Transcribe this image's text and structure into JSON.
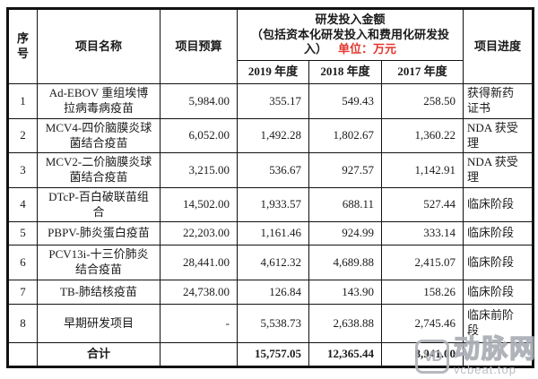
{
  "table": {
    "header": {
      "col_seq": "序号",
      "col_name": "项目名称",
      "col_budget": "项目预算",
      "rd_title": "研发投入金额",
      "rd_subtitle": "（包括资本化研发投入和费用化研发投入）",
      "unit_label": "单位：万元",
      "years": [
        "2019 年度",
        "2018 年度",
        "2017 年度"
      ],
      "col_progress": "项目进度"
    },
    "rows": [
      {
        "seq": "1",
        "name": "Ad-EBOV 重组埃博拉病毒病疫苗",
        "budget": "5,984.00",
        "y2019": "355.17",
        "y2018": "549.43",
        "y2017": "258.50",
        "progress": "获得新药证书"
      },
      {
        "seq": "2",
        "name": "MCV4-四价脑膜炎球菌结合疫苗",
        "budget": "6,052.00",
        "y2019": "1,492.28",
        "y2018": "1,802.67",
        "y2017": "1,360.22",
        "progress": "NDA 获受理"
      },
      {
        "seq": "3",
        "name": "MCV2-二价脑膜炎球菌结合疫苗",
        "budget": "3,215.00",
        "y2019": "536.67",
        "y2018": "927.57",
        "y2017": "1,142.91",
        "progress": "NDA 获受理"
      },
      {
        "seq": "4",
        "name": "DTcP-百白破联苗组合",
        "budget": "14,502.00",
        "y2019": "1,933.57",
        "y2018": "688.11",
        "y2017": "527.44",
        "progress": "临床阶段"
      },
      {
        "seq": "5",
        "name": "PBPV-肺炎蛋白疫苗",
        "budget": "22,203.00",
        "y2019": "1,161.46",
        "y2018": "924.99",
        "y2017": "333.14",
        "progress": "临床阶段"
      },
      {
        "seq": "6",
        "name": "PCV13i-十三价肺炎结合疫苗",
        "budget": "28,441.00",
        "y2019": "4,612.32",
        "y2018": "4,689.88",
        "y2017": "2,415.07",
        "progress": "临床阶段"
      },
      {
        "seq": "7",
        "name": "TB-肺结核疫苗",
        "budget": "24,738.00",
        "y2019": "126.84",
        "y2018": "143.90",
        "y2017": "158.26",
        "progress": "临床阶段"
      },
      {
        "seq": "8",
        "name": "早期研发项目",
        "budget": "-",
        "y2019": "5,538.73",
        "y2018": "2,638.88",
        "y2017": "2,745.46",
        "progress": "临床前阶段"
      }
    ],
    "total": {
      "label": "合计",
      "y2019": "15,757.05",
      "y2018": "12,365.44",
      "y2017": "8,941.00"
    }
  },
  "watermark": {
    "logo_text": "VD",
    "brand": "动脉网",
    "site": "vcbeat.top"
  },
  "colors": {
    "unit_red": "#e4372e",
    "watermark_gray": "#afb3b9",
    "border_black": "#111111"
  }
}
